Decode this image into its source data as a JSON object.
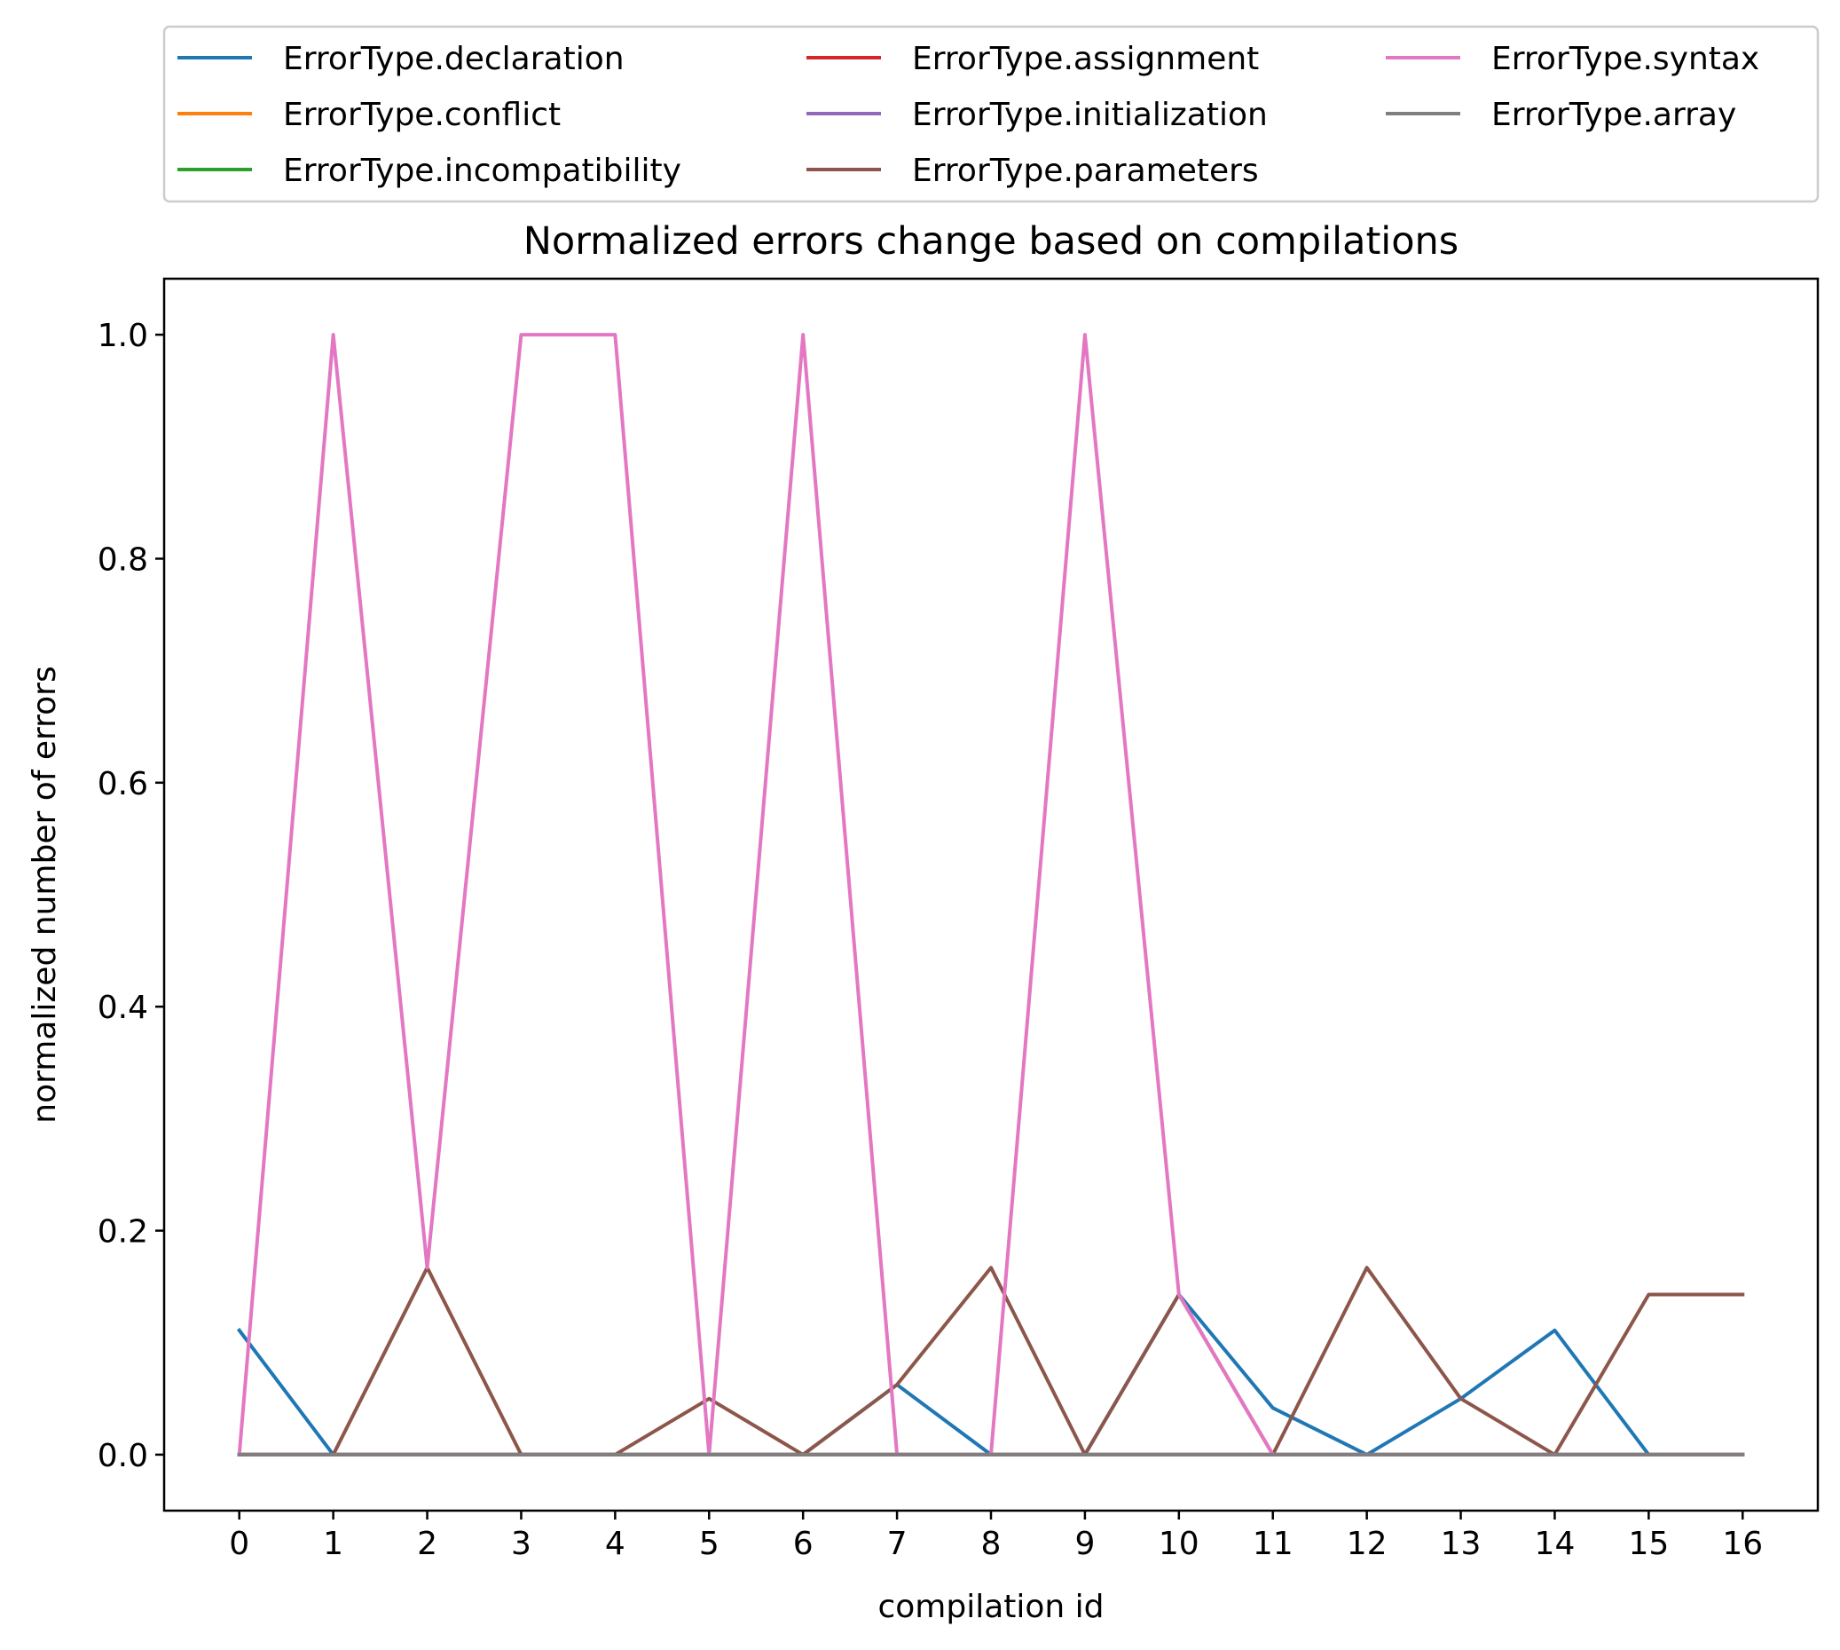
{
  "chart_data": {
    "type": "line",
    "title": "Normalized errors change based on compilations",
    "xlabel": "compilation id",
    "ylabel": "normalized number of errors",
    "x": [
      0,
      1,
      2,
      3,
      4,
      5,
      6,
      7,
      8,
      9,
      10,
      11,
      12,
      13,
      14,
      15,
      16
    ],
    "xlim": [
      -0.8,
      16.8
    ],
    "ylim": [
      -0.05,
      1.05
    ],
    "x_ticks": [
      "0",
      "1",
      "2",
      "3",
      "4",
      "5",
      "6",
      "7",
      "8",
      "9",
      "10",
      "11",
      "12",
      "13",
      "14",
      "15",
      "16"
    ],
    "y_ticks": [
      "0.0",
      "0.2",
      "0.4",
      "0.6",
      "0.8",
      "1.0"
    ],
    "grid": false,
    "legend_position": "above plot, 3 columns",
    "series": [
      {
        "name": "ErrorType.declaration",
        "color": "#1f77b4",
        "values": [
          0.111,
          0,
          0,
          0,
          0,
          0,
          0,
          0.0625,
          0,
          0,
          0.143,
          0.0417,
          0,
          0.05,
          0.111,
          0,
          0
        ]
      },
      {
        "name": "ErrorType.conflict",
        "color": "#ff7f0e",
        "values": [
          0,
          0,
          0,
          0,
          0,
          0,
          0,
          0,
          0,
          0,
          0,
          0,
          0,
          0,
          0,
          0,
          0
        ]
      },
      {
        "name": "ErrorType.incompatibility",
        "color": "#2ca02c",
        "values": [
          0,
          0,
          0,
          0,
          0,
          0,
          0,
          0,
          0,
          0,
          0,
          0,
          0,
          0,
          0,
          0,
          0
        ]
      },
      {
        "name": "ErrorType.assignment",
        "color": "#d62728",
        "values": [
          0,
          0,
          0,
          0,
          0,
          0,
          0,
          0,
          0,
          0,
          0,
          0,
          0,
          0,
          0,
          0,
          0
        ]
      },
      {
        "name": "ErrorType.initialization",
        "color": "#9467bd",
        "values": [
          0,
          0,
          0,
          0,
          0,
          0,
          0,
          0,
          0,
          0,
          0,
          0,
          0,
          0,
          0,
          0,
          0
        ]
      },
      {
        "name": "ErrorType.parameters",
        "color": "#8c564b",
        "values": [
          0,
          0,
          0.167,
          0,
          0,
          0.05,
          0,
          0.0625,
          0.167,
          0,
          0.143,
          0,
          0.167,
          0.05,
          0,
          0.143,
          0.143
        ]
      },
      {
        "name": "ErrorType.syntax",
        "color": "#e377c2",
        "values": [
          0,
          1,
          0.167,
          1,
          1,
          0,
          1,
          0,
          0,
          1,
          0.143,
          0,
          0,
          0,
          0,
          0,
          0
        ]
      },
      {
        "name": "ErrorType.array",
        "color": "#7f7f7f",
        "values": [
          0,
          0,
          0,
          0,
          0,
          0,
          0,
          0,
          0,
          0,
          0,
          0,
          0,
          0,
          0,
          0,
          0
        ]
      }
    ]
  }
}
